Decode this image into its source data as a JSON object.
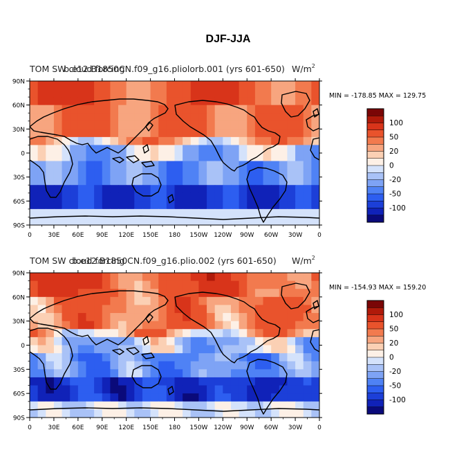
{
  "figure_title": "DJF-JJA",
  "palette": [
    "#0a0a7a",
    "#1022b8",
    "#1c3fd8",
    "#2d5ef0",
    "#4f82f5",
    "#7ea3f5",
    "#a9c2f7",
    "#d4e2fb",
    "#fdf0e6",
    "#fbd0b4",
    "#f7a57f",
    "#f27a4e",
    "#e9532c",
    "#d8341a",
    "#b01a0a",
    "#7a0606"
  ],
  "chart_data": [
    {
      "type": "heatmap",
      "title_left": "TOM SW cloud forcing",
      "title_center": "b.e12.B1850CN.f09_g16.pliolorb.001 (yrs 601-650)",
      "title_right": "W/m",
      "units_exponent": "2",
      "min_max_text": "MIN = -178.85  MAX = 129.75",
      "min": -178.85,
      "max": 129.75,
      "x_ticks": [
        "0",
        "30E",
        "60E",
        "90E",
        "120E",
        "150E",
        "180",
        "150W",
        "120W",
        "90W",
        "60W",
        "30W",
        "0"
      ],
      "y_ticks": [
        "90N",
        "60N",
        "30N",
        "0",
        "30S",
        "60S",
        "90S"
      ],
      "colorbar_labels": [
        "100",
        "50",
        "20",
        "0",
        "-20",
        "-50",
        "-100"
      ],
      "colorbar_levels": [
        -150,
        -125,
        -100,
        -75,
        -50,
        -35,
        -20,
        -10,
        0,
        10,
        20,
        35,
        50,
        75,
        100,
        125,
        150
      ]
    },
    {
      "type": "heatmap",
      "title_left": "TOM SW cloud forcing",
      "title_center": "b.e12.B1850CN.f09_g16.plio.002 (yrs 601-650)",
      "title_right": "W/m",
      "units_exponent": "2",
      "min_max_text": "MIN = -154.93  MAX = 159.20",
      "min": -154.93,
      "max": 159.2,
      "x_ticks": [
        "0",
        "30E",
        "60E",
        "90E",
        "120E",
        "150E",
        "180",
        "150W",
        "120W",
        "90W",
        "60W",
        "30W",
        "0"
      ],
      "y_ticks": [
        "90N",
        "60N",
        "30N",
        "0",
        "30S",
        "60S",
        "90S"
      ],
      "colorbar_labels": [
        "100",
        "50",
        "20",
        "0",
        "-20",
        "-50",
        "-100"
      ],
      "colorbar_levels": [
        -150,
        -125,
        -100,
        -75,
        -50,
        -35,
        -20,
        -10,
        0,
        10,
        20,
        35,
        50,
        75,
        100,
        125,
        150
      ]
    }
  ]
}
